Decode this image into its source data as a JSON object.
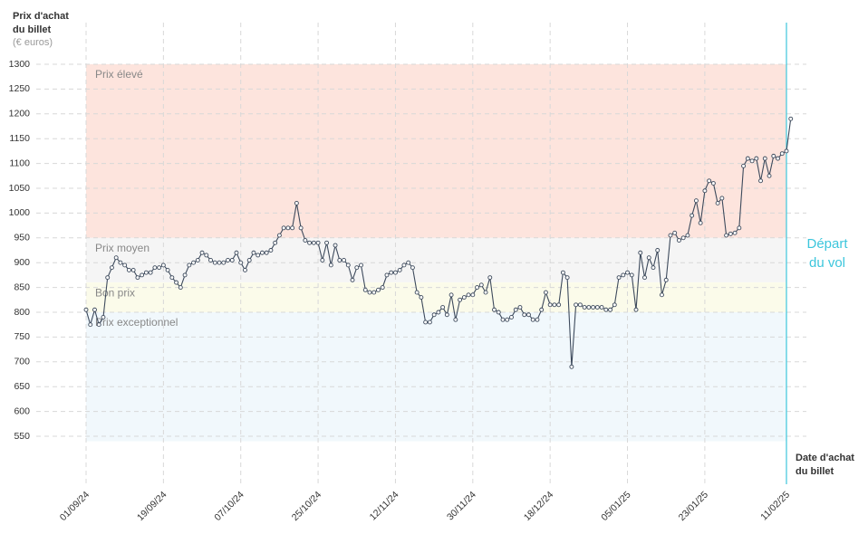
{
  "chart_data": {
    "type": "line",
    "y_title": [
      "Prix d'achat",
      "du billet"
    ],
    "y_unit": "(€ euros)",
    "x_title": [
      "Date d'achat",
      "du billet"
    ],
    "departure_label": [
      "Départ",
      "du vol"
    ],
    "departure_x": "11/02/25",
    "departure_color": "#3cc6dc",
    "color": "#3d4a5c",
    "grid": true,
    "ylim": [
      550,
      1300
    ],
    "yticks": [
      550,
      600,
      650,
      700,
      750,
      800,
      850,
      900,
      950,
      1000,
      1050,
      1100,
      1150,
      1200,
      1250,
      1300
    ],
    "xlim": [
      "01/09/24",
      "11/02/25"
    ],
    "xticks": [
      "01/09/24",
      "19/09/24",
      "07/10/24",
      "25/10/24",
      "12/11/24",
      "30/11/24",
      "18/12/24",
      "05/01/25",
      "23/01/25",
      "11/02/25"
    ],
    "bands": [
      {
        "label": "Prix élevé",
        "from": 950,
        "to": 1300,
        "color": "#fde4dd"
      },
      {
        "label": "Prix moyen",
        "from": 860,
        "to": 950,
        "color": "#f5f5f5"
      },
      {
        "label": "Bon prix",
        "from": 800,
        "to": 860,
        "color": "#fbfbea"
      },
      {
        "label": "Prix exceptionnel",
        "from": 540,
        "to": 800,
        "color": "#f1f8fc"
      }
    ],
    "x": [
      "01/09/24",
      "02/09/24",
      "03/09/24",
      "04/09/24",
      "05/09/24",
      "06/09/24",
      "07/09/24",
      "08/09/24",
      "09/09/24",
      "10/09/24",
      "11/09/24",
      "12/09/24",
      "13/09/24",
      "14/09/24",
      "15/09/24",
      "16/09/24",
      "17/09/24",
      "18/09/24",
      "19/09/24",
      "20/09/24",
      "21/09/24",
      "22/09/24",
      "23/09/24",
      "24/09/24",
      "25/09/24",
      "26/09/24",
      "27/09/24",
      "28/09/24",
      "29/09/24",
      "30/09/24",
      "01/10/24",
      "02/10/24",
      "03/10/24",
      "04/10/24",
      "05/10/24",
      "06/10/24",
      "07/10/24",
      "08/10/24",
      "09/10/24",
      "10/10/24",
      "11/10/24",
      "12/10/24",
      "13/10/24",
      "14/10/24",
      "15/10/24",
      "16/10/24",
      "17/10/24",
      "18/10/24",
      "19/10/24",
      "20/10/24",
      "21/10/24",
      "22/10/24",
      "23/10/24",
      "24/10/24",
      "25/10/24",
      "26/10/24",
      "27/10/24",
      "28/10/24",
      "29/10/24",
      "30/10/24",
      "31/10/24",
      "01/11/24",
      "02/11/24",
      "03/11/24",
      "04/11/24",
      "05/11/24",
      "06/11/24",
      "07/11/24",
      "08/11/24",
      "09/11/24",
      "10/11/24",
      "11/11/24",
      "12/11/24",
      "13/11/24",
      "14/11/24",
      "15/11/24",
      "16/11/24",
      "17/11/24",
      "18/11/24",
      "19/11/24",
      "20/11/24",
      "21/11/24",
      "22/11/24",
      "23/11/24",
      "24/11/24",
      "25/11/24",
      "26/11/24",
      "27/11/24",
      "28/11/24",
      "29/11/24",
      "30/11/24",
      "01/12/24",
      "02/12/24",
      "03/12/24",
      "04/12/24",
      "05/12/24",
      "06/12/24",
      "07/12/24",
      "08/12/24",
      "09/12/24",
      "10/12/24",
      "11/12/24",
      "12/12/24",
      "13/12/24",
      "14/12/24",
      "15/12/24",
      "16/12/24",
      "17/12/24",
      "18/12/24",
      "19/12/24",
      "20/12/24",
      "21/12/24",
      "22/12/24",
      "23/12/24",
      "24/12/24",
      "25/12/24",
      "26/12/24",
      "27/12/24",
      "28/12/24",
      "29/12/24",
      "30/12/24",
      "31/12/24",
      "01/01/25",
      "02/01/25",
      "03/01/25",
      "04/01/25",
      "05/01/25",
      "06/01/25",
      "07/01/25",
      "08/01/25",
      "09/01/25",
      "10/01/25",
      "11/01/25",
      "12/01/25",
      "13/01/25",
      "14/01/25",
      "15/01/25",
      "16/01/25",
      "17/01/25",
      "18/01/25",
      "19/01/25",
      "20/01/25",
      "21/01/25",
      "22/01/25",
      "23/01/25",
      "24/01/25",
      "25/01/25",
      "26/01/25",
      "27/01/25",
      "28/01/25",
      "29/01/25",
      "30/01/25",
      "31/01/25",
      "01/02/25",
      "02/02/25",
      "03/02/25",
      "04/02/25",
      "05/02/25",
      "06/02/25",
      "07/02/25",
      "08/02/25",
      "09/02/25",
      "10/02/25",
      "11/02/25",
      "12/02/25"
    ],
    "values": [
      805,
      775,
      805,
      775,
      790,
      870,
      890,
      910,
      900,
      895,
      885,
      885,
      870,
      875,
      880,
      880,
      890,
      890,
      895,
      885,
      870,
      860,
      850,
      875,
      895,
      900,
      905,
      920,
      915,
      905,
      900,
      900,
      900,
      905,
      905,
      920,
      900,
      885,
      905,
      920,
      915,
      920,
      920,
      925,
      940,
      955,
      970,
      970,
      970,
      1020,
      970,
      945,
      940,
      940,
      940,
      905,
      940,
      895,
      935,
      905,
      905,
      895,
      865,
      890,
      895,
      845,
      840,
      840,
      845,
      850,
      875,
      880,
      880,
      885,
      895,
      900,
      890,
      840,
      830,
      780,
      780,
      795,
      800,
      810,
      795,
      835,
      785,
      825,
      830,
      835,
      835,
      850,
      855,
      840,
      870,
      805,
      800,
      785,
      785,
      790,
      805,
      810,
      795,
      795,
      785,
      785,
      805,
      840,
      815,
      815,
      815,
      880,
      870,
      690,
      815,
      815,
      810,
      810,
      810,
      810,
      810,
      805,
      805,
      815,
      870,
      875,
      880,
      875,
      805,
      920,
      870,
      910,
      890,
      925,
      835,
      865,
      955,
      960,
      945,
      950,
      955,
      995,
      1025,
      980,
      1045,
      1065,
      1060,
      1020,
      1030,
      955,
      958,
      960,
      970,
      1095,
      1110,
      1105,
      1110,
      1065,
      1110,
      1075,
      1115,
      1110,
      1120,
      1125,
      1190
    ]
  }
}
